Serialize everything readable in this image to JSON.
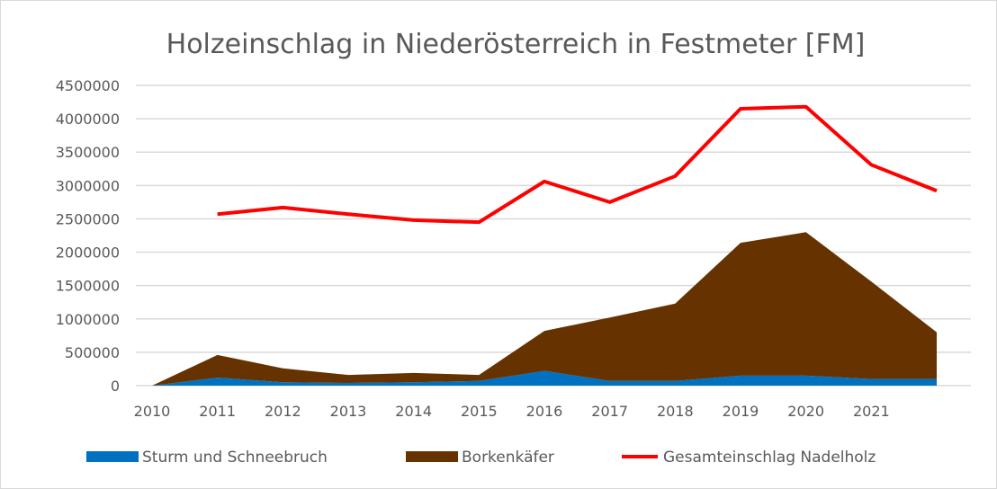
{
  "chart_data": {
    "type": "area+line",
    "title": "Holzeinschlag in Niederösterreich in Festmeter [FM]",
    "categories": [
      "2010",
      "2011",
      "2012",
      "2013",
      "2014",
      "2015",
      "2016",
      "2017",
      "2018",
      "2019",
      "2020",
      "2021",
      ""
    ],
    "ylim": [
      0,
      4500000
    ],
    "yticks": [
      "0",
      "500000",
      "1000000",
      "1500000",
      "2000000",
      "2500000",
      "3000000",
      "3500000",
      "4000000",
      "4500000"
    ],
    "grid": true,
    "legend_position": "bottom",
    "series": [
      {
        "name": "Sturm und Schneebruch",
        "type": "stacked-area",
        "color": "#0070C0",
        "values": [
          0,
          120000,
          50000,
          40000,
          50000,
          70000,
          220000,
          70000,
          70000,
          150000,
          150000,
          100000,
          100000
        ]
      },
      {
        "name": "Borkenkäfer",
        "type": "stacked-area",
        "color": "#663300",
        "values": [
          0,
          340000,
          210000,
          120000,
          140000,
          90000,
          600000,
          950000,
          1160000,
          1990000,
          2150000,
          1460000,
          700000
        ]
      },
      {
        "name": "Gesamteinschlag Nadelholz",
        "type": "line",
        "color": "#FF0000",
        "values": [
          null,
          2570000,
          2670000,
          2570000,
          2480000,
          2450000,
          3060000,
          2750000,
          3140000,
          4150000,
          4180000,
          3310000,
          2920000
        ]
      }
    ]
  }
}
